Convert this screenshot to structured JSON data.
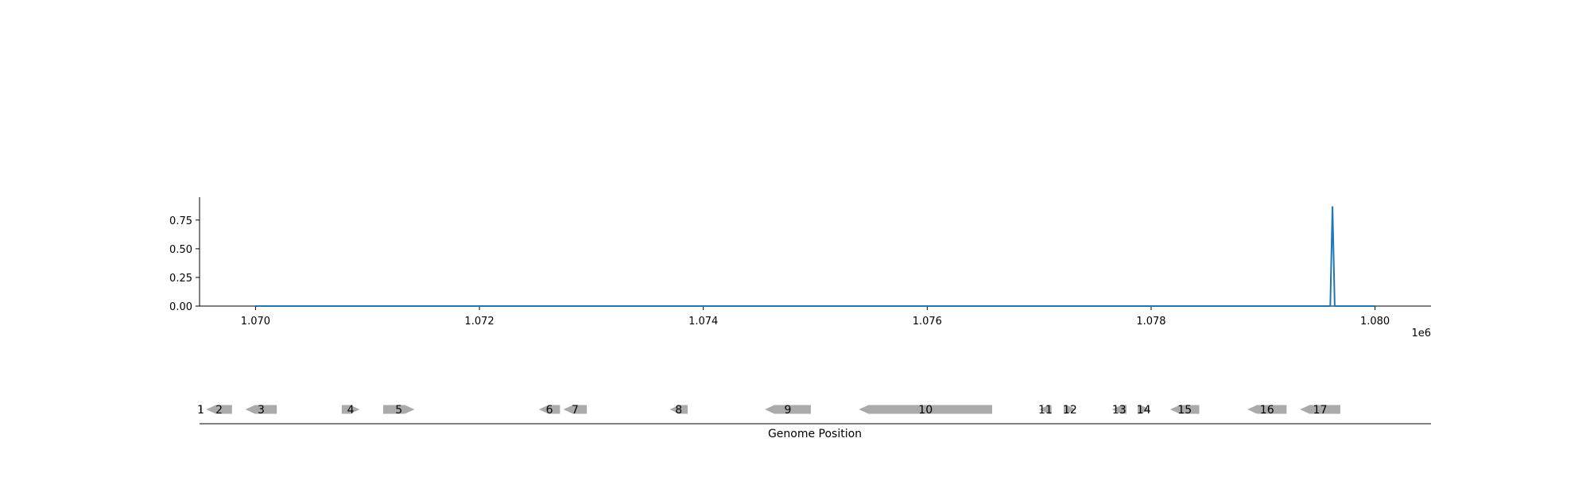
{
  "chart_data": [
    {
      "type": "line",
      "title": "",
      "xlabel": "",
      "ylabel": "",
      "offset_label": "1e6",
      "x_tick_labels": [
        "1.070",
        "1.072",
        "1.074",
        "1.076",
        "1.078",
        "1.080"
      ],
      "x_ticks": [
        1070000,
        1072000,
        1074000,
        1076000,
        1078000,
        1080000
      ],
      "y_tick_labels": [
        "0.00",
        "0.25",
        "0.50",
        "0.75"
      ],
      "y_ticks": [
        0,
        0.25,
        0.5,
        0.75
      ],
      "xlim": [
        1069500,
        1080500
      ],
      "ylim": [
        0,
        0.95
      ],
      "color": "#1f77b4",
      "series": [
        {
          "x": [
            1070000,
            1079600,
            1079620,
            1079640,
            1080000
          ],
          "y": [
            0,
            0,
            0.87,
            0,
            0
          ]
        }
      ]
    },
    {
      "type": "gene-track",
      "xlabel": "Genome Position",
      "xlim": [
        1069500,
        1080500
      ],
      "color": "#aaaaaa",
      "genes": [
        {
          "label": "1",
          "start": 1069500,
          "end": 1069520,
          "strand": "-"
        },
        {
          "label": "2",
          "start": 1069560,
          "end": 1069790,
          "strand": "-"
        },
        {
          "label": "3",
          "start": 1069910,
          "end": 1070190,
          "strand": "-"
        },
        {
          "label": "4",
          "start": 1070770,
          "end": 1070930,
          "strand": "+"
        },
        {
          "label": "5",
          "start": 1071140,
          "end": 1071420,
          "strand": "+"
        },
        {
          "label": "6",
          "start": 1072530,
          "end": 1072720,
          "strand": "-"
        },
        {
          "label": "7",
          "start": 1072750,
          "end": 1072960,
          "strand": "-"
        },
        {
          "label": "8",
          "start": 1073700,
          "end": 1073860,
          "strand": "-"
        },
        {
          "label": "9",
          "start": 1074550,
          "end": 1074960,
          "strand": "-"
        },
        {
          "label": "10",
          "start": 1075390,
          "end": 1076580,
          "strand": "-"
        },
        {
          "label": "11",
          "start": 1077000,
          "end": 1077110,
          "strand": "-"
        },
        {
          "label": "12",
          "start": 1077220,
          "end": 1077330,
          "strand": "+"
        },
        {
          "label": "13",
          "start": 1077650,
          "end": 1077780,
          "strand": "-"
        },
        {
          "label": "14",
          "start": 1077880,
          "end": 1077990,
          "strand": "+"
        },
        {
          "label": "15",
          "start": 1078170,
          "end": 1078430,
          "strand": "-"
        },
        {
          "label": "16",
          "start": 1078860,
          "end": 1079210,
          "strand": "-"
        },
        {
          "label": "17",
          "start": 1079330,
          "end": 1079690,
          "strand": "-"
        }
      ]
    }
  ]
}
